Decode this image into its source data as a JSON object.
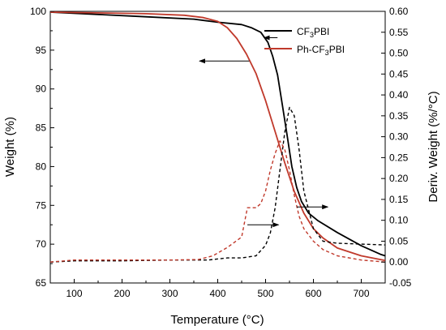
{
  "chart_data": {
    "type": "line",
    "xlabel": "Temperature (°C)",
    "ylabel": "Weight (%)",
    "y2label": "Deriv. Weight (%/°C)",
    "xlim": [
      50,
      750
    ],
    "ylim": [
      65,
      100
    ],
    "y2lim": [
      -0.05,
      0.6
    ],
    "x_ticks": [
      "100",
      "200",
      "300",
      "400",
      "500",
      "600",
      "700"
    ],
    "y_ticks": [
      "65",
      "70",
      "75",
      "80",
      "85",
      "90",
      "95",
      "100"
    ],
    "y2_ticks": [
      "-0.05",
      "0.00",
      "0.05",
      "0.10",
      "0.15",
      "0.20",
      "0.25",
      "0.30",
      "0.35",
      "0.40",
      "0.45",
      "0.50",
      "0.55",
      "0.60"
    ],
    "grid": false,
    "legend_position": "top-right",
    "colors": {
      "cf3pbi": "#000000",
      "ph_cf3pbi": "#c0392b"
    },
    "series": [
      {
        "name_main": "CF",
        "name_sub": "3",
        "name_tail": "PBI",
        "key": "cf3pbi",
        "axis": "left",
        "style": "solid",
        "x": [
          50,
          150,
          250,
          350,
          400,
          450,
          470,
          490,
          505,
          515,
          525,
          535,
          545,
          555,
          565,
          575,
          590,
          610,
          650,
          700,
          740,
          750
        ],
        "y": [
          99.9,
          99.6,
          99.3,
          99.0,
          98.6,
          98.3,
          97.9,
          97.3,
          96.0,
          94.2,
          91.8,
          88.0,
          84.0,
          80.0,
          77.3,
          75.5,
          74.0,
          73.0,
          71.5,
          69.8,
          68.7,
          68.5
        ]
      },
      {
        "name_main": "Ph-CF",
        "name_sub": "3",
        "name_tail": "PBI",
        "key": "ph_cf3pbi",
        "axis": "left",
        "style": "solid",
        "x": [
          50,
          150,
          250,
          330,
          370,
          400,
          420,
          440,
          460,
          480,
          500,
          520,
          540,
          560,
          580,
          600,
          620,
          650,
          700,
          750
        ],
        "y": [
          99.9,
          99.8,
          99.7,
          99.5,
          99.2,
          98.7,
          97.9,
          96.5,
          94.5,
          92.0,
          88.5,
          84.5,
          80.5,
          76.8,
          74.0,
          72.0,
          70.8,
          69.5,
          68.5,
          67.9
        ]
      },
      {
        "name_main": "CF",
        "name_sub": "3",
        "name_tail": "PBI",
        "key": "cf3pbi",
        "axis": "right",
        "style": "dashed",
        "x": [
          50,
          100,
          200,
          300,
          380,
          420,
          450,
          480,
          500,
          510,
          520,
          530,
          540,
          550,
          560,
          570,
          580,
          600,
          620,
          650,
          700,
          750
        ],
        "y": [
          0.0,
          0.003,
          0.003,
          0.005,
          0.005,
          0.01,
          0.01,
          0.015,
          0.04,
          0.07,
          0.13,
          0.22,
          0.31,
          0.37,
          0.35,
          0.27,
          0.17,
          0.08,
          0.05,
          0.045,
          0.043,
          0.041
        ]
      },
      {
        "name_main": "Ph-CF",
        "name_sub": "3",
        "name_tail": "PBI",
        "key": "ph_cf3pbi",
        "axis": "right",
        "style": "dashed",
        "x": [
          50,
          100,
          200,
          300,
          360,
          390,
          420,
          450,
          462,
          470,
          480,
          490,
          500,
          510,
          520,
          530,
          540,
          550,
          560,
          570,
          580,
          600,
          620,
          650,
          700,
          750
        ],
        "y": [
          0.0,
          0.005,
          0.005,
          0.005,
          0.006,
          0.015,
          0.035,
          0.06,
          0.13,
          0.13,
          0.13,
          0.14,
          0.17,
          0.22,
          0.26,
          0.29,
          0.27,
          0.22,
          0.16,
          0.11,
          0.08,
          0.05,
          0.03,
          0.015,
          0.005,
          0.0
        ]
      }
    ],
    "annotations": [
      "arrow-left-1",
      "arrow-left-2",
      "arrow-right-1",
      "arrow-right-2"
    ]
  }
}
